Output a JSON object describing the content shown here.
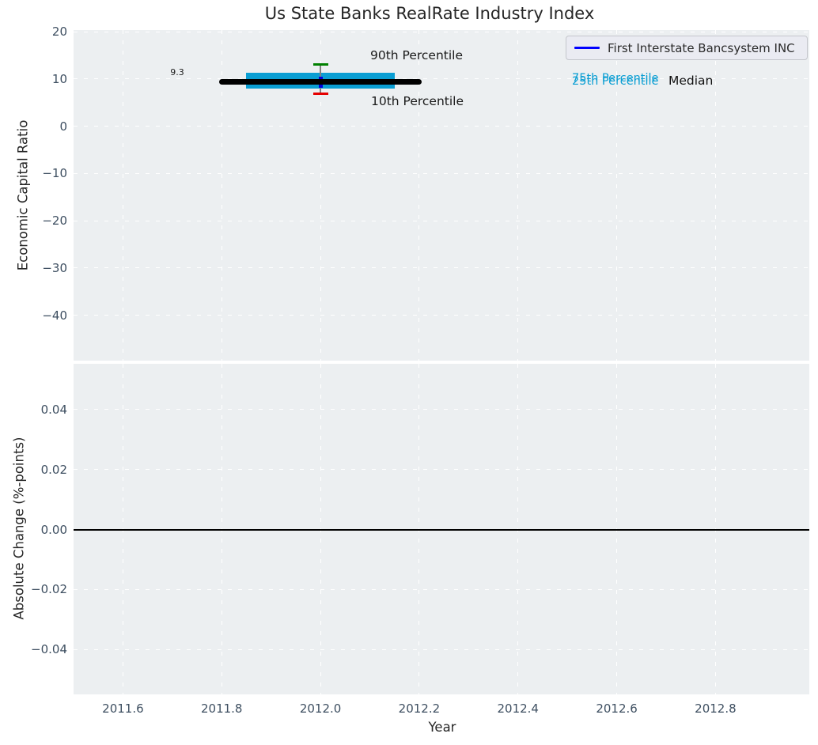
{
  "title": "Us State Banks RealRate Industry Index",
  "legend": {
    "label": "First Interstate Bancsystem INC",
    "line_color": "#0000ff"
  },
  "annotations": {
    "median_value": "9.3",
    "p90_label": "90th Percentile",
    "p10_label": "10th Percentile",
    "p75_label": "75th Percentile",
    "p25_label": "25th Percentile",
    "median_label": "Median"
  },
  "colors": {
    "iqr_box": "#0a9ed3",
    "p90_cap": "#008000",
    "p10_cap": "#e50000",
    "median_line": "#000000",
    "company_marker": "#0000dd",
    "whisker": "#808080",
    "plot_background": "#eceff1",
    "gridline": "#ffffff",
    "tick_label": "#3e4f61",
    "axis_label": "#262626",
    "percentile_text": "#0a9ed3"
  },
  "chart_data": [
    {
      "type": "box-whisker",
      "title": "Us State Banks RealRate Industry Index",
      "ylabel": "Economic Capital Ratio",
      "xlim": [
        2011.5,
        2012.99
      ],
      "ylim": [
        -49.6,
        20.34
      ],
      "grid": true,
      "legend_position": "upper right",
      "xticks": [
        {
          "v": 2011.6,
          "label": "2011.6"
        },
        {
          "v": 2011.8,
          "label": "2011.8"
        },
        {
          "v": 2012.0,
          "label": "2012.0"
        },
        {
          "v": 2012.2,
          "label": "2012.2"
        },
        {
          "v": 2012.4,
          "label": "2012.4"
        },
        {
          "v": 2012.6,
          "label": "2012.6"
        },
        {
          "v": 2012.8,
          "label": "2012.8"
        }
      ],
      "yticks": [
        {
          "v": 20,
          "label": "20"
        },
        {
          "v": 10,
          "label": "10"
        },
        {
          "v": 0,
          "label": "0"
        },
        {
          "v": -10,
          "label": "−10"
        },
        {
          "v": -20,
          "label": "−20"
        },
        {
          "v": -30,
          "label": "−30"
        },
        {
          "v": -40,
          "label": "−40"
        }
      ],
      "industry_percentiles": {
        "year": 2012.0,
        "median": 9.3,
        "median_span_years": [
          2011.8,
          2012.2
        ],
        "p75": 11.3,
        "p25": 8.0,
        "box_span_years": [
          2011.85,
          2012.15
        ],
        "p90": 13.1,
        "p10": 6.8
      },
      "company_point": {
        "name": "First Interstate Bancsystem INC",
        "x": 2012.0,
        "y": 9.3,
        "marker": "vertical-tick"
      }
    },
    {
      "type": "line",
      "ylabel": "Absolute Change (%-points)",
      "xlabel": "Year",
      "xlim": [
        2011.5,
        2012.99
      ],
      "ylim": [
        -0.055,
        0.0553
      ],
      "grid": true,
      "xticks": [
        {
          "v": 2011.6,
          "label": "2011.6"
        },
        {
          "v": 2011.8,
          "label": "2011.8"
        },
        {
          "v": 2012.0,
          "label": "2012.0"
        },
        {
          "v": 2012.2,
          "label": "2012.2"
        },
        {
          "v": 2012.4,
          "label": "2012.4"
        },
        {
          "v": 2012.6,
          "label": "2012.6"
        },
        {
          "v": 2012.8,
          "label": "2012.8"
        }
      ],
      "yticks": [
        {
          "v": 0.04,
          "label": "0.04"
        },
        {
          "v": 0.02,
          "label": "0.02"
        },
        {
          "v": 0.0,
          "label": "0.00"
        },
        {
          "v": -0.02,
          "label": "−0.02"
        },
        {
          "v": -0.04,
          "label": "−0.04"
        }
      ],
      "zero_line": 0.0,
      "series": []
    }
  ]
}
